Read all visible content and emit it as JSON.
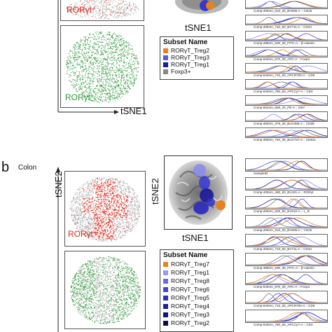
{
  "panel_b": {
    "letter": "b",
    "title": "Colon"
  },
  "axes": {
    "tsne1": "tSNE1",
    "tsne2": "tSNE2"
  },
  "labels": {
    "roryt_plus": "RORγt⁺",
    "roryt_minus": "RORγt⁻"
  },
  "legend_a": {
    "title": "Subset Name",
    "items": [
      {
        "name": "RORγT_Treg2",
        "color": "#e8821e"
      },
      {
        "name": "RORγT_Treg3",
        "color": "#5a5ae6"
      },
      {
        "name": "RORγT_Treg1",
        "color": "#1a1a9a"
      },
      {
        "name": "Foxp3+",
        "color": "#888888"
      }
    ]
  },
  "legend_b": {
    "title": "Subset Name",
    "items": [
      {
        "name": "RORγT_Treg7",
        "color": "#e8821e"
      },
      {
        "name": "RORγT_Treg1",
        "color": "#9a9af0"
      },
      {
        "name": "RORγT_Treg8",
        "color": "#6a6ae8"
      },
      {
        "name": "RORγT_Treg6",
        "color": "#4545d8"
      },
      {
        "name": "RORγT_Treg5",
        "color": "#3030b8"
      },
      {
        "name": "RORγT_Treg4",
        "color": "#1e1e98"
      },
      {
        "name": "RORγT_Treg3",
        "color": "#141478"
      },
      {
        "name": "RORγT_Treg2",
        "color": "#0a0a55"
      }
    ]
  },
  "hist_a": [
    "Comp-405nm_610_20_BV605-A :: CD25",
    "Comp-405nm_710_50_BV711-A :: CD44",
    "Comp-488nm_530_30_FITC-A :: β-catenin",
    "Comp-640nm_670_30_APC-A :: Foxp3",
    "Comp-640nm_710_50_APCR700-A :: CD5",
    "Comp-640nm_780_60_APCCy7-A :: CD4",
    "Comp-561nm_586_15_PE-A :: Ki67",
    "Comp-355nm_379_28_BUV395-A :: CD69",
    "Comp-355nm_740_35_BUV737-A :: CD62L"
  ],
  "hist_b": [
    "SampleID",
    "Comp-405nm_450_50_BV421-A :: RORγt",
    "Comp-405nm_525_50_BV510-A :: L_D",
    "Comp-405nm_610_20_BV605-A :: CD25",
    "Comp-405nm_710_50_BV711-A :: CD44",
    "Comp-488nm_530_30_FITC-A :: β-catenin",
    "Comp-640nm_670_30_APC-A :: Foxp3",
    "Comp-640nm_710_50_APCR700-A :: CD5",
    "Comp-640nm_780_60_APCCy7-A :: CD4"
  ],
  "colors": {
    "red": "#e0271d",
    "green": "#2f9b3a",
    "orange": "#e8821e",
    "blue": "#2a2ad0"
  }
}
